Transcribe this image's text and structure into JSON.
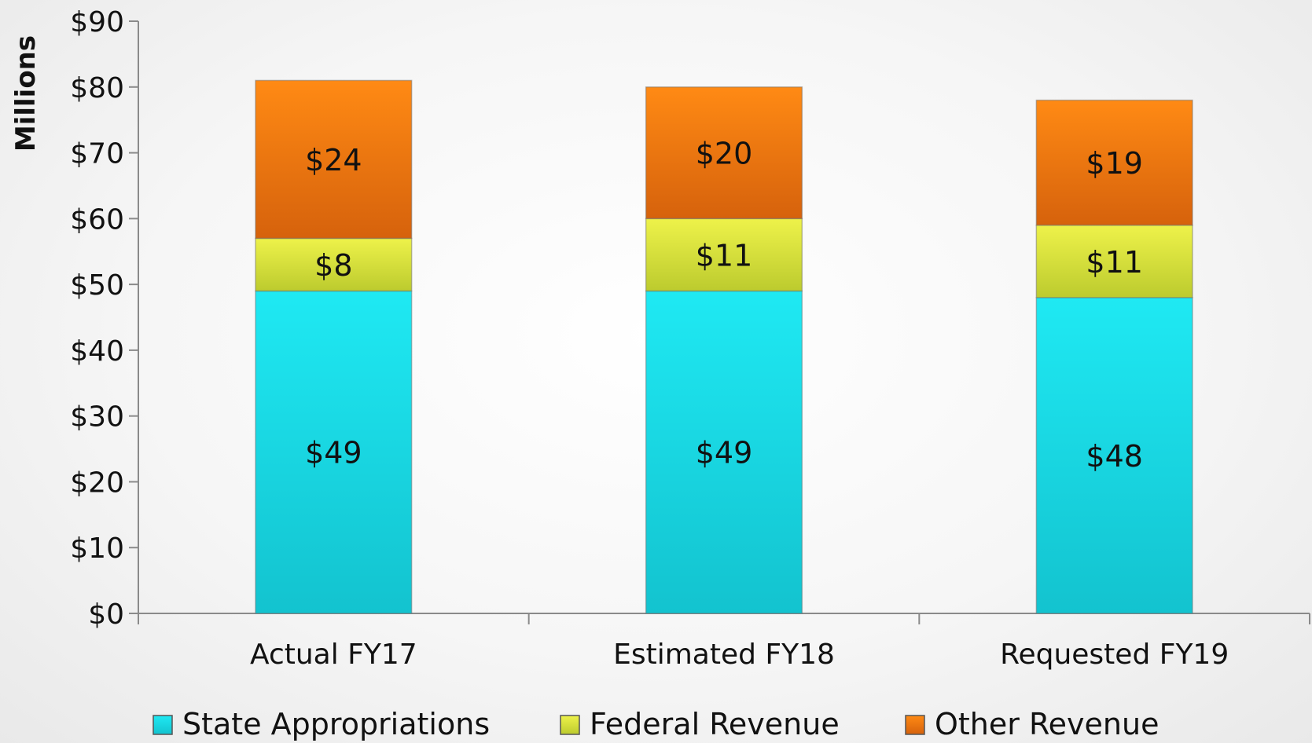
{
  "chart_data": {
    "type": "bar",
    "stacked": true,
    "title": "",
    "xlabel": "",
    "ylabel": "Millions",
    "ylim": [
      0,
      90
    ],
    "yticks": [
      0,
      10,
      20,
      30,
      40,
      50,
      60,
      70,
      80,
      90
    ],
    "ytick_labels": [
      "$0",
      "$10",
      "$20",
      "$30",
      "$40",
      "$50",
      "$60",
      "$70",
      "$80",
      "$90"
    ],
    "categories": [
      "Actual FY17",
      "Estimated FY18",
      "Requested FY19"
    ],
    "series": [
      {
        "name": "State Appropriations",
        "values": [
          49,
          49,
          48
        ],
        "labels": [
          "$49",
          "$49",
          "$48"
        ],
        "color": "#22dde8"
      },
      {
        "name": "Federal Revenue",
        "values": [
          8,
          11,
          11
        ],
        "labels": [
          "$8",
          "$11",
          "$11"
        ],
        "color": "#d4e43a"
      },
      {
        "name": "Other Revenue",
        "values": [
          24,
          20,
          19
        ],
        "labels": [
          "$24",
          "$20",
          "$19"
        ],
        "color": "#f07612"
      }
    ],
    "legend_position": "bottom",
    "grid": false
  }
}
